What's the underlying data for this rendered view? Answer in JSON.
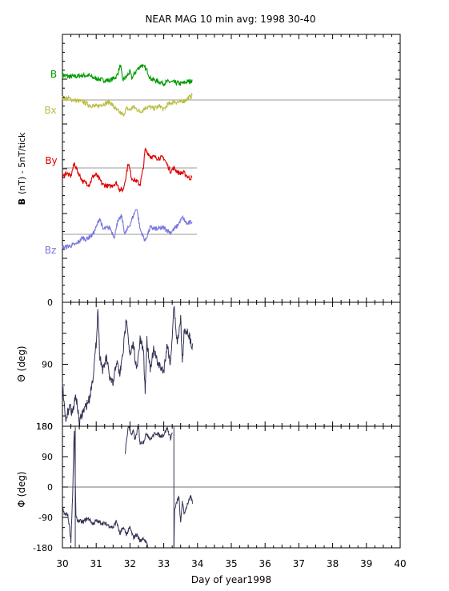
{
  "figure": {
    "title": "NEAR MAG 10 min avg: 1998 30-40",
    "xlabel": "Day of year1998"
  },
  "chart_data": [
    {
      "type": "line",
      "panel": "field",
      "ylabel_bold": "B",
      "ylabel": "(nT) - 5nT/tick",
      "xlim": [
        30,
        40
      ],
      "xticks": [
        "30",
        "31",
        "32",
        "33",
        "34",
        "35",
        "36",
        "37",
        "38",
        "39",
        "40"
      ],
      "grid": false,
      "baselines": [
        {
          "name": "Bx",
          "x": [
            30,
            40
          ]
        },
        {
          "name": "By",
          "x": [
            30,
            33.98
          ]
        },
        {
          "name": "Bz",
          "x": [
            30,
            33.98
          ]
        }
      ],
      "series": [
        {
          "name": "B",
          "color": "#009900",
          "x_range": [
            30,
            33.85
          ],
          "points": [
            [
              30.0,
              1.0
            ],
            [
              30.2,
              0.5
            ],
            [
              30.4,
              0.6
            ],
            [
              30.6,
              0.9
            ],
            [
              30.8,
              0.8
            ],
            [
              30.9,
              0.2
            ],
            [
              31.0,
              0.0
            ],
            [
              31.2,
              -0.5
            ],
            [
              31.4,
              -0.6
            ],
            [
              31.6,
              0.5
            ],
            [
              31.72,
              4.0
            ],
            [
              31.78,
              -0.5
            ],
            [
              31.9,
              0.5
            ],
            [
              32.0,
              2.0
            ],
            [
              32.05,
              0.0
            ],
            [
              32.2,
              2.5
            ],
            [
              32.35,
              4.0
            ],
            [
              32.5,
              2.5
            ],
            [
              32.6,
              0.0
            ],
            [
              32.8,
              -0.8
            ],
            [
              33.0,
              -1.5
            ],
            [
              33.1,
              -1.0
            ],
            [
              33.3,
              -1.2
            ],
            [
              33.5,
              -1.6
            ],
            [
              33.7,
              -1.0
            ],
            [
              33.85,
              -0.6
            ]
          ]
        },
        {
          "name": "Bx",
          "color": "#bbbb44",
          "x_range": [
            30,
            33.85
          ],
          "points": [
            [
              30.0,
              0.6
            ],
            [
              30.2,
              0.4
            ],
            [
              30.4,
              -0.2
            ],
            [
              30.6,
              -0.5
            ],
            [
              30.8,
              -1.5
            ],
            [
              31.0,
              -2.0
            ],
            [
              31.2,
              -1.2
            ],
            [
              31.4,
              -0.6
            ],
            [
              31.6,
              -3.0
            ],
            [
              31.8,
              -4.5
            ],
            [
              31.9,
              -2.5
            ],
            [
              32.0,
              -3.0
            ],
            [
              32.1,
              -2.0
            ],
            [
              32.3,
              -3.5
            ],
            [
              32.5,
              -2.0
            ],
            [
              32.7,
              -2.5
            ],
            [
              32.9,
              -1.8
            ],
            [
              33.0,
              -3.0
            ],
            [
              33.1,
              -1.5
            ],
            [
              33.3,
              -0.5
            ],
            [
              33.5,
              -0.7
            ],
            [
              33.7,
              0.3
            ],
            [
              33.85,
              1.5
            ]
          ]
        },
        {
          "name": "By",
          "color": "#dd0000",
          "x_range": [
            30,
            33.85
          ],
          "points": [
            [
              30.0,
              -3.0
            ],
            [
              30.1,
              -1.5
            ],
            [
              30.25,
              -2.5
            ],
            [
              30.35,
              1.5
            ],
            [
              30.45,
              -1.0
            ],
            [
              30.6,
              -4.0
            ],
            [
              30.8,
              -5.0
            ],
            [
              30.9,
              -2.5
            ],
            [
              31.0,
              -2.0
            ],
            [
              31.2,
              -5.0
            ],
            [
              31.4,
              -5.5
            ],
            [
              31.6,
              -4.5
            ],
            [
              31.7,
              -6.5
            ],
            [
              31.8,
              -6.5
            ],
            [
              31.85,
              -4.0
            ],
            [
              31.95,
              1.5
            ],
            [
              32.05,
              -3.0
            ],
            [
              32.2,
              -4.0
            ],
            [
              32.3,
              -5.0
            ],
            [
              32.4,
              0.5
            ],
            [
              32.45,
              5.5
            ],
            [
              32.6,
              3.5
            ],
            [
              32.8,
              3.0
            ],
            [
              33.0,
              3.0
            ],
            [
              33.1,
              1.0
            ],
            [
              33.2,
              -1.0
            ],
            [
              33.3,
              0.0
            ],
            [
              33.45,
              -1.5
            ],
            [
              33.6,
              -1.5
            ],
            [
              33.75,
              -3.0
            ],
            [
              33.85,
              -3.0
            ]
          ]
        },
        {
          "name": "Bz",
          "color": "#7777dd",
          "x_range": [
            30,
            33.85
          ],
          "points": [
            [
              30.0,
              -4.0
            ],
            [
              30.2,
              -3.5
            ],
            [
              30.4,
              -3.0
            ],
            [
              30.6,
              -1.0
            ],
            [
              30.7,
              -1.5
            ],
            [
              30.9,
              0.0
            ],
            [
              31.0,
              2.0
            ],
            [
              31.1,
              5.0
            ],
            [
              31.2,
              1.5
            ],
            [
              31.4,
              2.0
            ],
            [
              31.55,
              -1.0
            ],
            [
              31.6,
              3.0
            ],
            [
              31.75,
              5.5
            ],
            [
              31.85,
              0.0
            ],
            [
              32.0,
              3.0
            ],
            [
              32.2,
              8.0
            ],
            [
              32.3,
              1.5
            ],
            [
              32.45,
              -2.0
            ],
            [
              32.6,
              2.0
            ],
            [
              32.8,
              1.5
            ],
            [
              33.0,
              2.0
            ],
            [
              33.2,
              0.5
            ],
            [
              33.4,
              2.5
            ],
            [
              33.55,
              5.0
            ],
            [
              33.7,
              3.0
            ],
            [
              33.85,
              4.0
            ]
          ]
        }
      ]
    },
    {
      "type": "line",
      "panel": "theta",
      "ylabel": "Θ (deg)",
      "ylim": [
        0,
        180
      ],
      "yticks": [
        "0",
        "90",
        "180"
      ],
      "xlim": [
        30,
        40
      ],
      "color": "#333355",
      "points": [
        [
          30.0,
          115
        ],
        [
          30.05,
          150
        ],
        [
          30.1,
          175
        ],
        [
          30.2,
          150
        ],
        [
          30.3,
          160
        ],
        [
          30.4,
          135
        ],
        [
          30.5,
          175
        ],
        [
          30.6,
          160
        ],
        [
          30.7,
          150
        ],
        [
          30.8,
          140
        ],
        [
          30.9,
          110
        ],
        [
          31.0,
          60
        ],
        [
          31.05,
          8
        ],
        [
          31.1,
          75
        ],
        [
          31.2,
          100
        ],
        [
          31.3,
          80
        ],
        [
          31.4,
          110
        ],
        [
          31.5,
          120
        ],
        [
          31.6,
          85
        ],
        [
          31.7,
          105
        ],
        [
          31.8,
          70
        ],
        [
          31.9,
          20
        ],
        [
          32.0,
          80
        ],
        [
          32.1,
          60
        ],
        [
          32.2,
          100
        ],
        [
          32.3,
          55
        ],
        [
          32.4,
          70
        ],
        [
          32.45,
          130
        ],
        [
          32.5,
          55
        ],
        [
          32.6,
          95
        ],
        [
          32.7,
          70
        ],
        [
          32.8,
          85
        ],
        [
          32.9,
          95
        ],
        [
          33.0,
          100
        ],
        [
          33.1,
          60
        ],
        [
          33.2,
          90
        ],
        [
          33.3,
          5
        ],
        [
          33.4,
          60
        ],
        [
          33.5,
          20
        ],
        [
          33.55,
          90
        ],
        [
          33.6,
          45
        ],
        [
          33.7,
          40
        ],
        [
          33.85,
          65
        ]
      ]
    },
    {
      "type": "line",
      "panel": "phi",
      "ylabel": "Φ (deg)",
      "ylim": [
        -180,
        180
      ],
      "yticks": [
        "-180",
        "-90",
        "0",
        "90",
        "180"
      ],
      "xlim": [
        30,
        40
      ],
      "color": "#333355",
      "segments": [
        [
          [
            30.0,
            -60
          ],
          [
            30.05,
            -80
          ],
          [
            30.15,
            -80
          ],
          [
            30.2,
            -110
          ],
          [
            30.25,
            -160
          ],
          [
            30.3,
            -30
          ],
          [
            30.35,
            170
          ],
          [
            30.38,
            20
          ],
          [
            30.4,
            -90
          ],
          [
            30.45,
            -100
          ],
          [
            30.5,
            -100
          ],
          [
            30.6,
            -105
          ],
          [
            30.7,
            -95
          ],
          [
            30.8,
            -95
          ],
          [
            30.9,
            -110
          ],
          [
            31.0,
            -100
          ],
          [
            31.1,
            -105
          ],
          [
            31.3,
            -110
          ],
          [
            31.5,
            -120
          ],
          [
            31.6,
            -100
          ],
          [
            31.7,
            -140
          ],
          [
            31.8,
            -120
          ],
          [
            31.9,
            -140
          ],
          [
            32.0,
            -120
          ],
          [
            32.1,
            -150
          ],
          [
            32.2,
            -140
          ],
          [
            32.3,
            -160
          ],
          [
            32.4,
            -150
          ],
          [
            32.5,
            -170
          ],
          [
            32.55,
            -180
          ]
        ],
        [
          [
            31.85,
            95
          ],
          [
            31.9,
            140
          ],
          [
            31.95,
            180
          ],
          [
            32.0,
            170
          ],
          [
            32.05,
            155
          ],
          [
            32.1,
            165
          ],
          [
            32.15,
            140
          ],
          [
            32.2,
            160
          ],
          [
            32.25,
            180
          ],
          [
            32.3,
            130
          ],
          [
            32.4,
            135
          ],
          [
            32.5,
            160
          ],
          [
            32.6,
            140
          ],
          [
            32.7,
            155
          ],
          [
            32.8,
            160
          ],
          [
            32.9,
            150
          ],
          [
            33.0,
            155
          ],
          [
            33.1,
            175
          ],
          [
            33.15,
            160
          ],
          [
            33.2,
            145
          ],
          [
            33.25,
            160
          ]
        ],
        [
          [
            33.3,
            -180
          ],
          [
            33.32,
            -70
          ],
          [
            33.4,
            -40
          ],
          [
            33.45,
            -30
          ],
          [
            33.5,
            -110
          ],
          [
            33.55,
            -40
          ],
          [
            33.6,
            -80
          ],
          [
            33.7,
            -50
          ],
          [
            33.8,
            -30
          ],
          [
            33.85,
            -45
          ]
        ]
      ],
      "verticals": [
        [
          30.38,
          -180,
          180
        ],
        [
          33.3,
          -180,
          180
        ]
      ]
    }
  ]
}
